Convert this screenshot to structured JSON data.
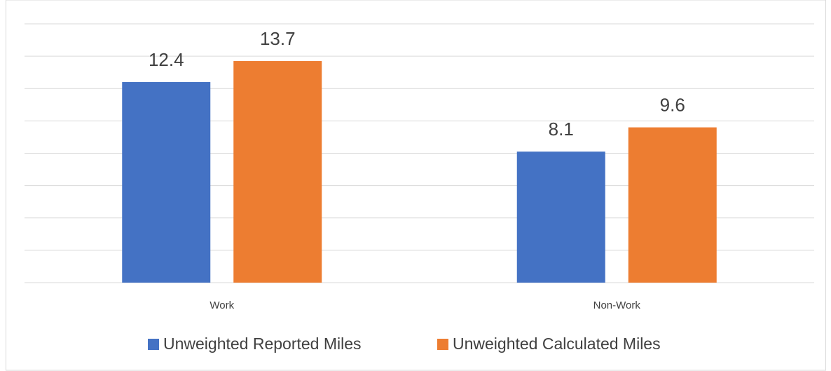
{
  "chart_data": {
    "type": "bar",
    "categories": [
      "Work",
      "Non-Work"
    ],
    "series": [
      {
        "name": "Unweighted Reported Miles",
        "color": "#4472c4",
        "values": [
          12.4,
          8.1
        ]
      },
      {
        "name": "Unweighted Calculated Miles",
        "color": "#ed7d31",
        "values": [
          13.7,
          9.6
        ]
      }
    ],
    "ylim": [
      0,
      16
    ],
    "yticks": [
      0,
      2,
      4,
      6,
      8,
      10,
      12,
      14,
      16
    ],
    "grid": true,
    "tick_labels": false,
    "legend": "bottom"
  }
}
